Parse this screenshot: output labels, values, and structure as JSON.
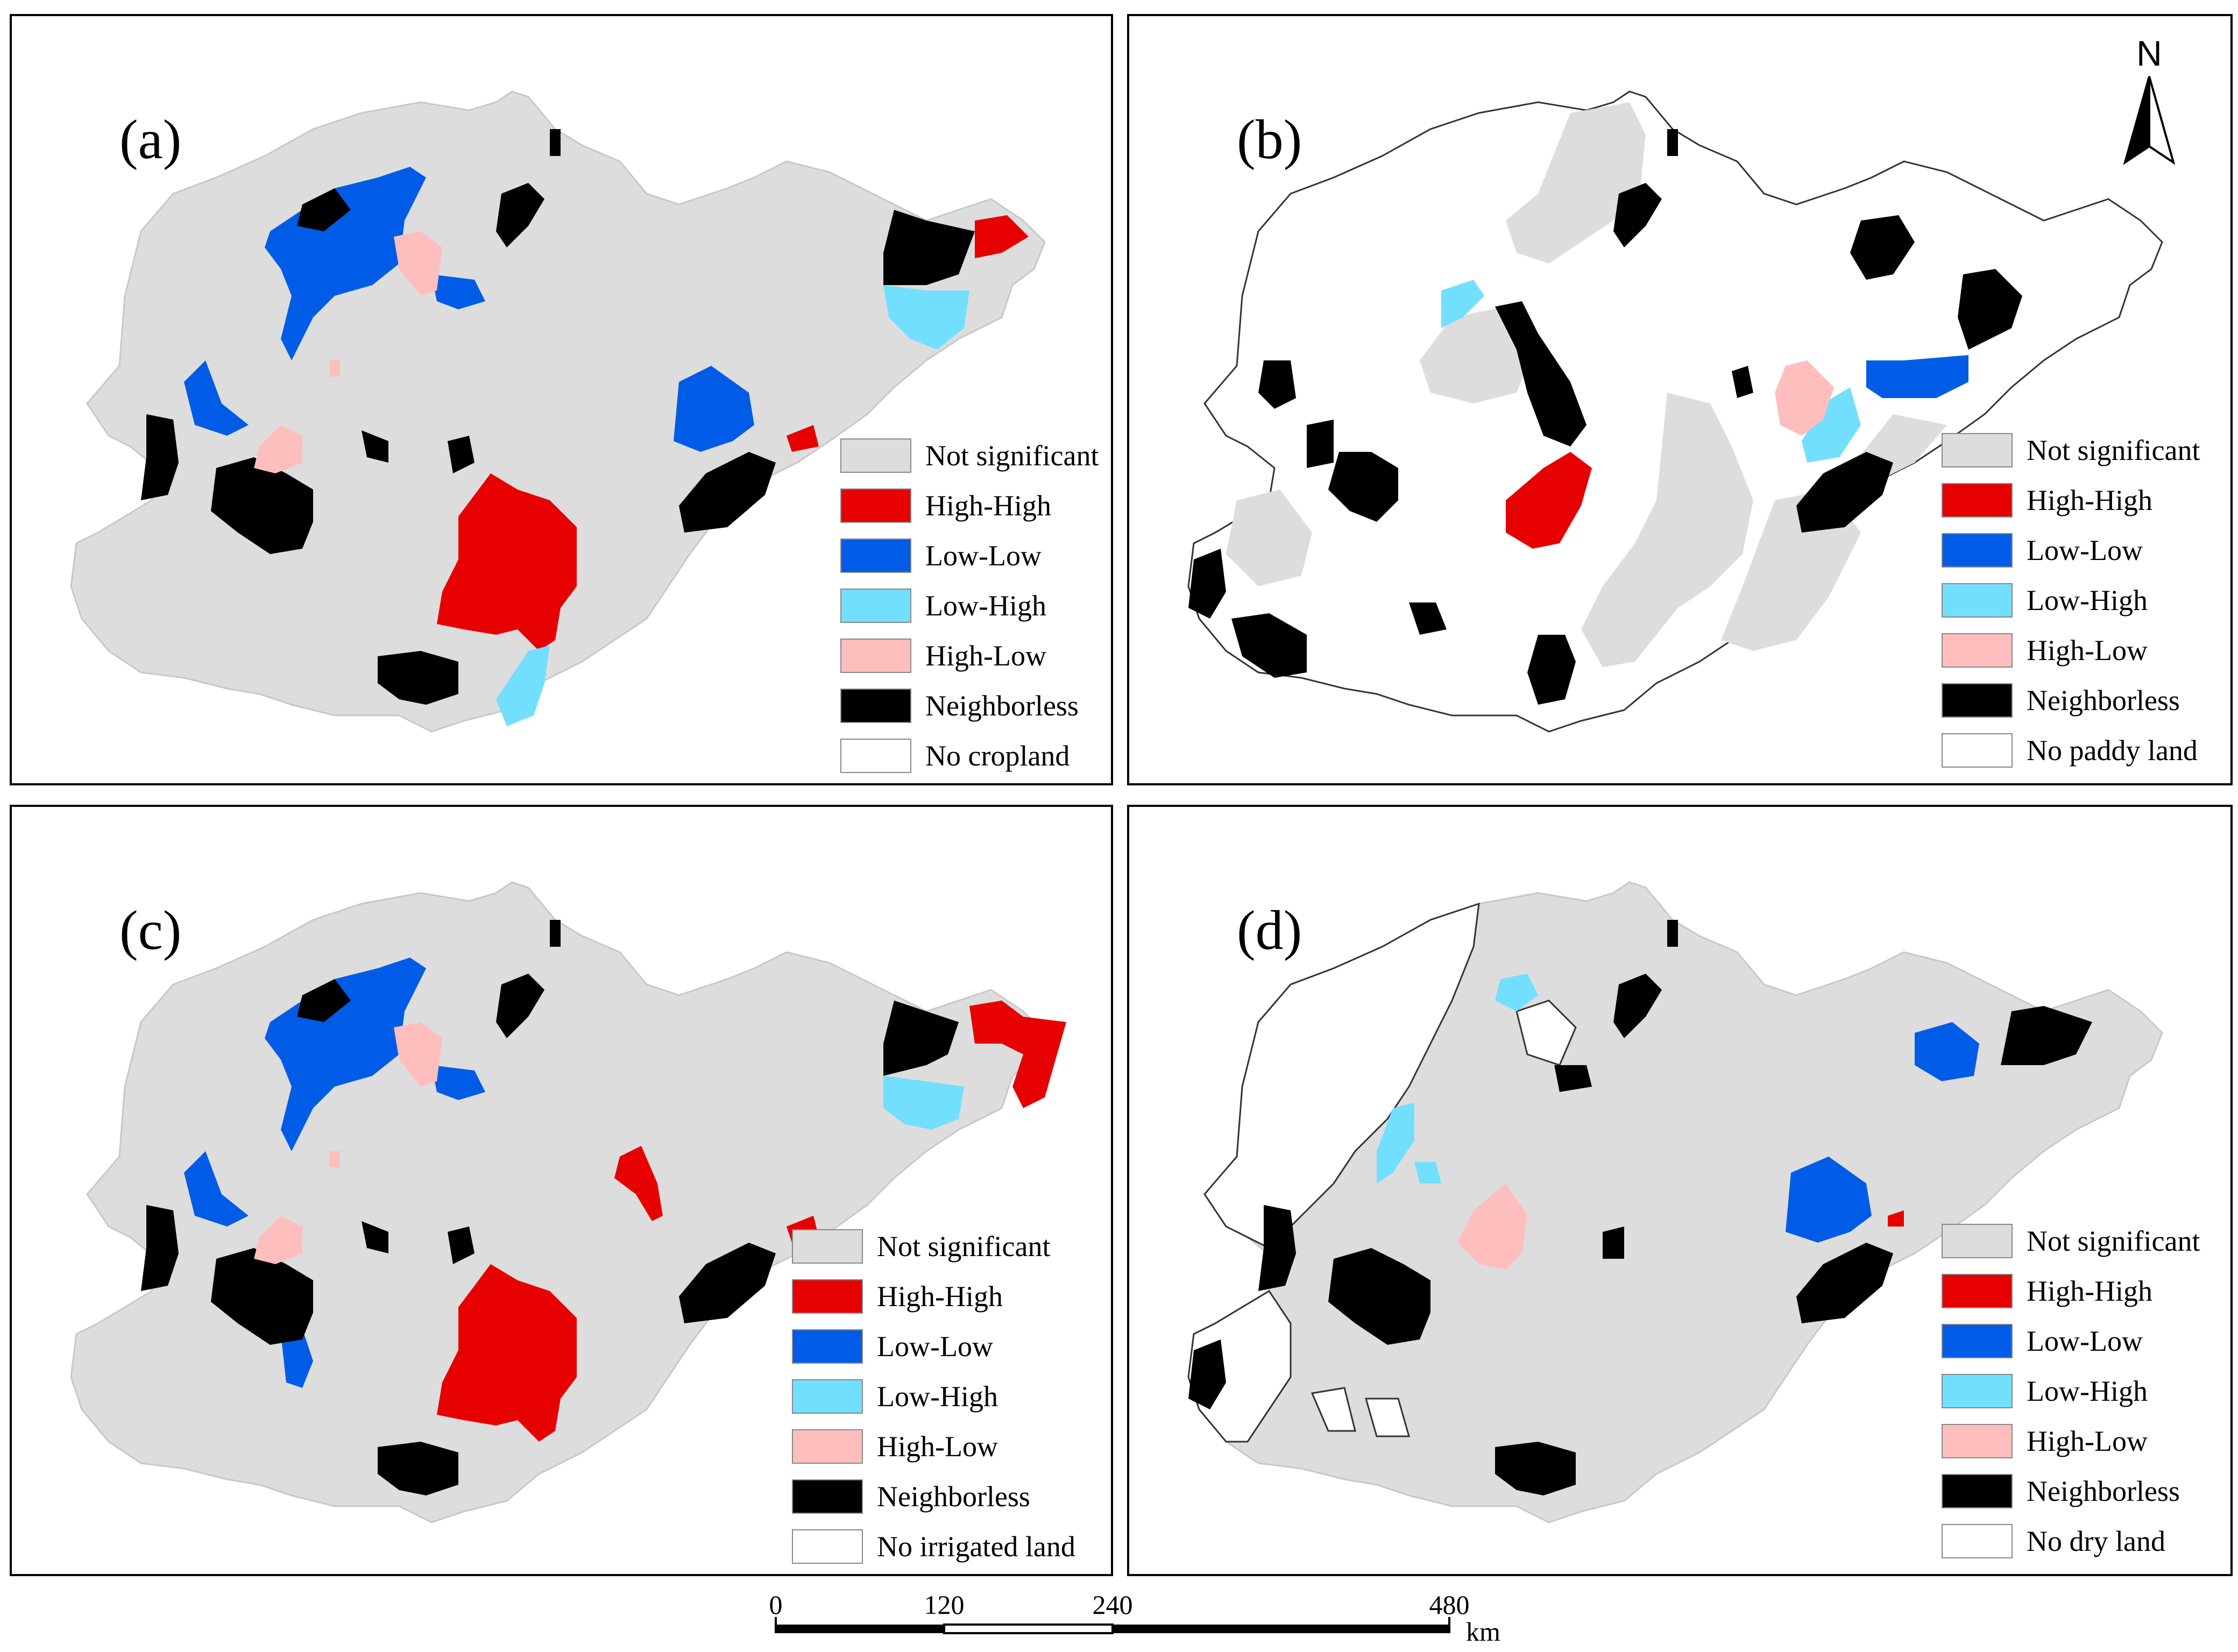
{
  "colors": {
    "not_significant": "#dddddd",
    "high_high": "#e60000",
    "low_low": "#005ce6",
    "low_high": "#73dfff",
    "high_low": "#ffbebe",
    "neighborless": "#000000",
    "none": "#ffffff"
  },
  "panels": [
    {
      "label": "(a)",
      "legend": [
        "Not significant",
        "High-High",
        "Low-Low",
        "Low-High",
        "High-Low",
        "Neighborless",
        "No cropland"
      ]
    },
    {
      "label": "(b)",
      "legend": [
        "Not significant",
        "High-High",
        "Low-Low",
        "Low-High",
        "High-Low",
        "Neighborless",
        "No paddy land"
      ]
    },
    {
      "label": "(c)",
      "legend": [
        "Not significant",
        "High-High",
        "Low-Low",
        "Low-High",
        "High-Low",
        "Neighborless",
        "No irrigated land"
      ]
    },
    {
      "label": "(d)",
      "legend": [
        "Not significant",
        "High-High",
        "Low-Low",
        "Low-High",
        "High-Low",
        "Neighborless",
        "No dry land"
      ]
    }
  ],
  "north_arrow": {
    "label": "N"
  },
  "scale_bar": {
    "ticks": [
      "0",
      "120",
      "240",
      "480"
    ],
    "unit": "km"
  }
}
